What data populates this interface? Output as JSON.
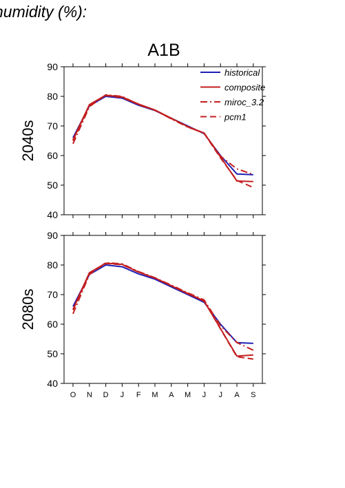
{
  "figure_title": "humidity (%):",
  "scenario_title": "A1B",
  "colors": {
    "historical": "#1f1fb4",
    "model": "#c41e1e"
  },
  "chart_data": [
    {
      "type": "line",
      "panel_label": "2040s",
      "categories": [
        "O",
        "N",
        "D",
        "J",
        "F",
        "M",
        "A",
        "M",
        "J",
        "J",
        "A",
        "S"
      ],
      "ylim": [
        40,
        90
      ],
      "yticks": [
        40,
        50,
        60,
        70,
        80,
        90
      ],
      "grid": false,
      "legend": "top-right",
      "series": [
        {
          "name": "historical",
          "dash": "solid",
          "color": "#1f1fb4",
          "values": [
            66.0,
            76.8,
            80.0,
            79.4,
            77.0,
            75.2,
            72.6,
            70.0,
            67.4,
            60.0,
            53.8,
            53.5
          ]
        },
        {
          "name": "composite",
          "dash": "solid",
          "color": "#c41e1e",
          "values": [
            65.3,
            77.2,
            80.4,
            79.8,
            77.4,
            75.4,
            72.6,
            69.8,
            67.6,
            59.5,
            51.4,
            51.2
          ]
        },
        {
          "name": "miroc_3.2",
          "dash": "dashdot",
          "color": "#c41e1e",
          "values": [
            64.0,
            76.5,
            80.5,
            80.0,
            77.2,
            75.3,
            72.4,
            69.6,
            67.6,
            59.8,
            55.5,
            53.6
          ]
        },
        {
          "name": "pcm1",
          "dash": "longdash",
          "color": "#c41e1e",
          "values": [
            65.0,
            77.0,
            80.3,
            79.6,
            77.3,
            75.3,
            72.5,
            69.7,
            67.5,
            59.2,
            51.6,
            49.2
          ]
        }
      ]
    },
    {
      "type": "line",
      "panel_label": "2080s",
      "categories": [
        "O",
        "N",
        "D",
        "J",
        "F",
        "M",
        "A",
        "M",
        "J",
        "J",
        "A",
        "S"
      ],
      "ylim": [
        40,
        90
      ],
      "yticks": [
        40,
        50,
        60,
        70,
        80,
        90
      ],
      "grid": false,
      "series": [
        {
          "name": "historical",
          "dash": "solid",
          "color": "#1f1fb4",
          "values": [
            66.0,
            76.8,
            80.0,
            79.4,
            77.0,
            75.2,
            72.6,
            70.0,
            67.4,
            60.0,
            53.8,
            53.5
          ]
        },
        {
          "name": "composite",
          "dash": "solid",
          "color": "#c41e1e",
          "values": [
            65.0,
            77.4,
            80.6,
            80.2,
            77.6,
            75.6,
            73.0,
            70.4,
            67.8,
            58.5,
            49.2,
            49.6
          ]
        },
        {
          "name": "miroc_3.2",
          "dash": "dashdot",
          "color": "#c41e1e",
          "values": [
            63.5,
            76.8,
            80.8,
            80.4,
            77.8,
            75.7,
            73.2,
            70.6,
            68.2,
            59.5,
            53.8,
            51.2
          ]
        },
        {
          "name": "pcm1",
          "dash": "longdash",
          "color": "#c41e1e",
          "values": [
            64.8,
            77.1,
            80.5,
            80.1,
            77.6,
            75.6,
            73.0,
            70.3,
            67.9,
            58.4,
            49.0,
            48.2
          ]
        }
      ]
    }
  ]
}
